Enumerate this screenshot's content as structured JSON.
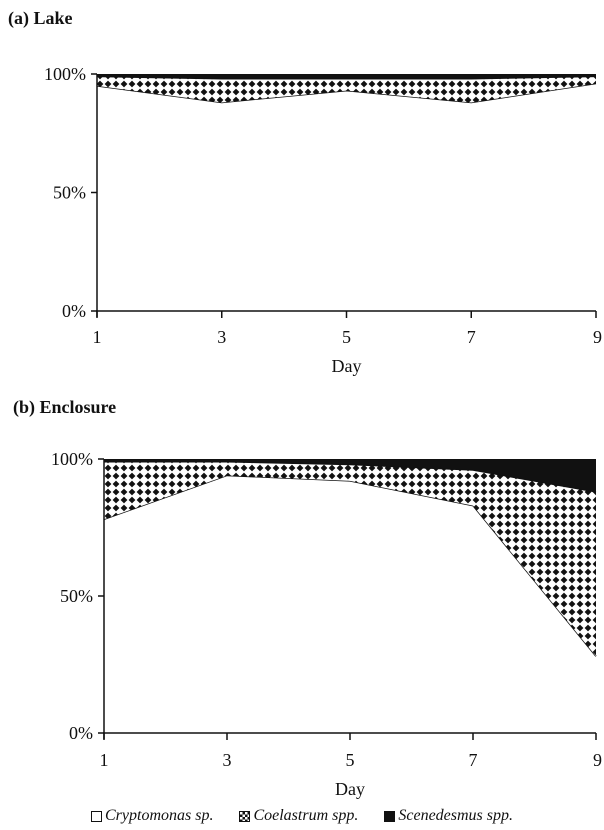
{
  "chart_data": [
    {
      "type": "area",
      "stacked": true,
      "panel_label": "(a) Lake",
      "x": [
        1,
        3,
        5,
        7,
        9
      ],
      "xticks": [
        1,
        3,
        5,
        7,
        9
      ],
      "xlabel": "Day",
      "ylabel": "",
      "yticks": [
        "0%",
        "50%",
        "100%"
      ],
      "ylim": [
        0,
        100
      ],
      "series": [
        {
          "name": "Cryptomonas sp.",
          "values": [
            95,
            88,
            93,
            88,
            96
          ],
          "fill": "white"
        },
        {
          "name": "Coelastrum spp.",
          "values": [
            4,
            10,
            5,
            10,
            3
          ],
          "fill": "checker"
        },
        {
          "name": "Scenedesmus spp.",
          "values": [
            1,
            2,
            2,
            2,
            1
          ],
          "fill": "black"
        }
      ]
    },
    {
      "type": "area",
      "stacked": true,
      "panel_label": "(b) Enclosure",
      "x": [
        1,
        3,
        5,
        7,
        9
      ],
      "xticks": [
        1,
        3,
        5,
        7,
        9
      ],
      "xlabel": "Day",
      "ylabel": "",
      "yticks": [
        "0%",
        "50%",
        "100%"
      ],
      "ylim": [
        0,
        100
      ],
      "series": [
        {
          "name": "Cryptomonas sp.",
          "values": [
            78,
            94,
            92,
            83,
            28
          ],
          "fill": "white"
        },
        {
          "name": "Coelastrum spp.",
          "values": [
            21,
            5,
            6,
            13,
            60
          ],
          "fill": "checker"
        },
        {
          "name": "Scenedesmus spp.",
          "values": [
            1,
            1,
            2,
            4,
            12
          ],
          "fill": "black"
        }
      ]
    }
  ],
  "legend": [
    {
      "label": "Cryptomonas sp.",
      "icon": "white-square"
    },
    {
      "label": "Coelastrum spp.",
      "icon": "checker-square"
    },
    {
      "label": "Scenedesmus spp.",
      "icon": "black-square"
    }
  ],
  "colors": {
    "ink": "#111111",
    "background": "#ffffff"
  }
}
